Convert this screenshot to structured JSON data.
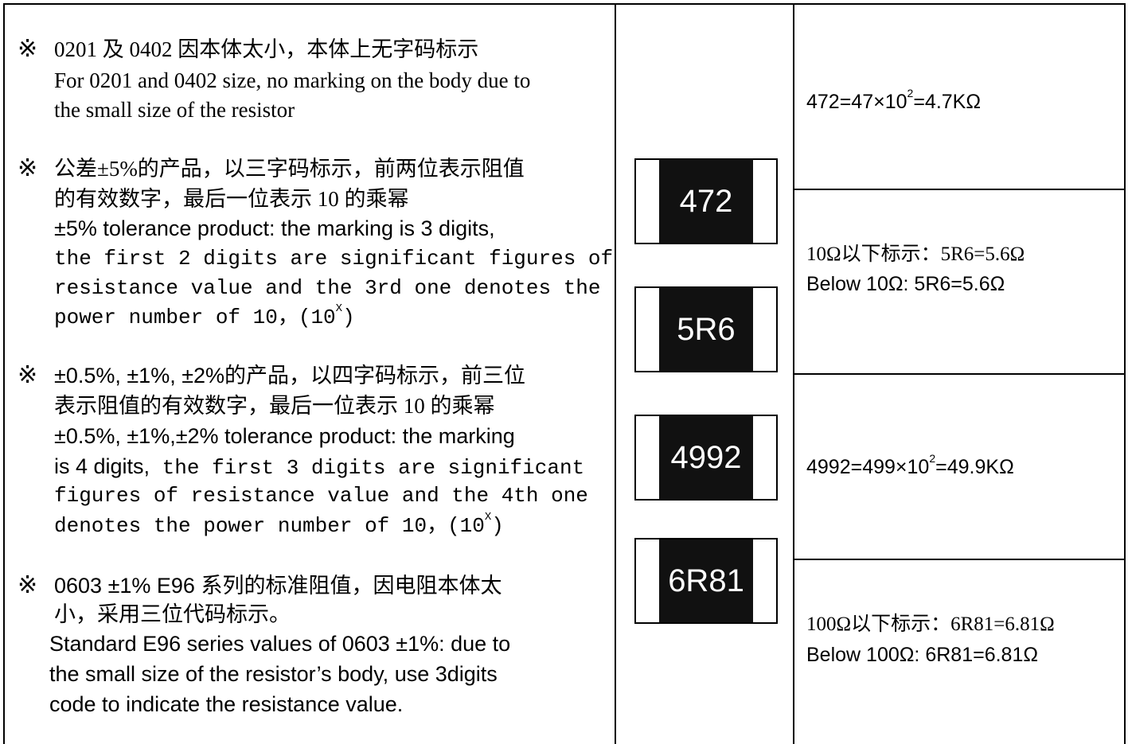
{
  "notes": [
    {
      "symbol": "※",
      "lines": [
        "0201 及 0402 因本体太小，本体上无字码标示",
        "For 0201 and 0402 size, no marking on the body due to",
        "the small size of the resistor"
      ]
    },
    {
      "symbol": "※",
      "lines": [
        "公差±5%的产品，以三字码标示，前两位表示阻值",
        "的有效数字，最后一位表示 10 的乘幂",
        "±5% tolerance product: the marking is 3 digits,",
        "the first 2 digits are significant figures of",
        "resistance value and the 3rd one denotes the",
        {
          "text": "power number of 10，(10",
          "sup": "X",
          "tail": ")"
        }
      ]
    },
    {
      "symbol": "※",
      "lines": [
        "±0.5%, ±1%, ±2%的产品，以四字码标示，前三位",
        "表示阻值的有效数字，最后一位表示 10 的乘幂",
        "±0.5%, ±1%,±2% tolerance product: the marking",
        {
          "sans": "is 4 digits,",
          "mono": "the first 3 digits are significant"
        },
        "figures of resistance value and the 4th one",
        {
          "text": "denotes the power number of 10，(10",
          "sup": "X",
          "tail": ")"
        }
      ]
    },
    {
      "symbol": "※",
      "lines": [
        "0603 ±1% E96 系列的标准阻值，因电阻本体太",
        "小，采用三位代码标示。",
        "Standard E96 series values of 0603 ±1%: due to",
        "the small size of the resistor’s body, use 3digits",
        "code to indicate the resistance value."
      ]
    }
  ],
  "chips": [
    "472",
    "5R6",
    "4992",
    "6R81"
  ],
  "examples": [
    {
      "lines": [
        {
          "text": "472=47×10",
          "sup": "2",
          "tail": "=4.7KΩ"
        }
      ]
    },
    {
      "lines": [
        "10Ω以下标示：5R6=5.6Ω",
        "Below 10Ω: 5R6=5.6Ω"
      ]
    },
    {
      "lines": [
        {
          "text": "4992=499×10",
          "sup": "2",
          "tail": "=49.9KΩ"
        }
      ]
    },
    {
      "lines": [
        "100Ω以下标示：6R81=6.81Ω",
        "Below 100Ω: 6R81=6.81Ω"
      ]
    }
  ]
}
